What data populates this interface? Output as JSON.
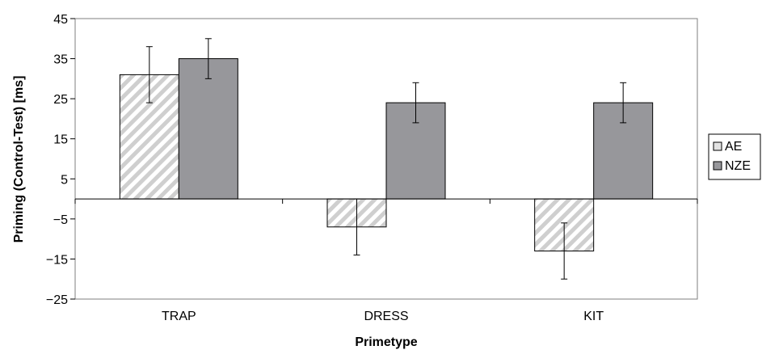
{
  "chart_data": {
    "type": "bar",
    "title": "",
    "xlabel": "Primetype",
    "ylabel": "Priming (Control-Test) [ms]",
    "categories": [
      "TRAP",
      "DRESS",
      "KIT"
    ],
    "ylim": [
      -25,
      45
    ],
    "yticks": [
      45,
      35,
      25,
      15,
      5,
      -5,
      -15,
      -25
    ],
    "ytick_labels": [
      "45",
      "35",
      "25",
      "15",
      "5",
      "−5",
      "−15",
      "−25"
    ],
    "grid": false,
    "legend_position": "right",
    "error_bars": true,
    "series": [
      {
        "name": "AE",
        "values": [
          31,
          -7,
          -13
        ],
        "error_low": [
          24,
          -14,
          -20
        ],
        "error_high": [
          38,
          0,
          -6
        ],
        "pattern": "diagonal-hatch",
        "color": "#c8c8c8"
      },
      {
        "name": "NZE",
        "values": [
          35,
          24,
          24
        ],
        "error_low": [
          30,
          19,
          19
        ],
        "error_high": [
          40,
          29,
          29
        ],
        "pattern": "solid",
        "color": "#97979b"
      }
    ]
  }
}
